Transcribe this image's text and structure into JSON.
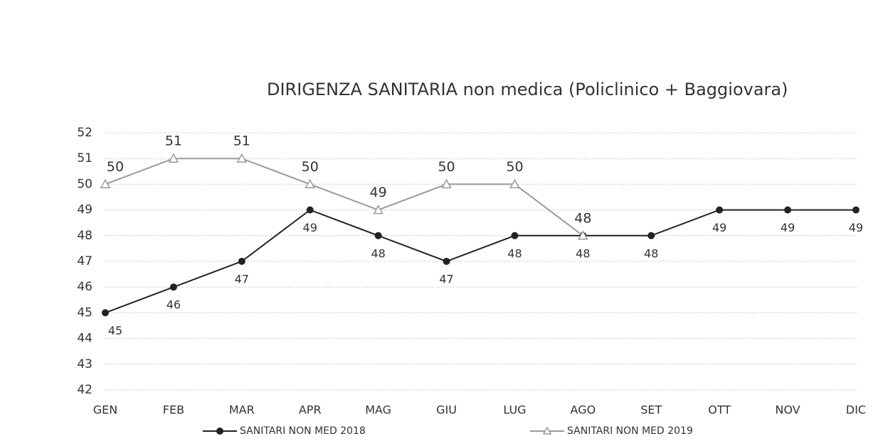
{
  "chart_data": {
    "type": "line",
    "title": "DIRIGENZA SANITARIA non medica (Policlinico + Baggiovara)",
    "categories": [
      "GEN",
      "FEB",
      "MAR",
      "APR",
      "MAG",
      "GIU",
      "LUG",
      "AGO",
      "SET",
      "OTT",
      "NOV",
      "DIC"
    ],
    "series": [
      {
        "name": "SANITARI NON MED 2018",
        "color": "#222222",
        "marker": "circle",
        "label_position": "below",
        "values": [
          45,
          46,
          47,
          49,
          48,
          47,
          48,
          48,
          48,
          49,
          49,
          49
        ]
      },
      {
        "name": "SANITARI NON MED 2019",
        "color": "#9a9a9a",
        "marker": "triangle",
        "label_position": "above",
        "values": [
          50,
          51,
          51,
          50,
          49,
          50,
          50,
          48,
          null,
          null,
          null,
          null
        ]
      }
    ],
    "ylim": [
      42,
      52
    ],
    "yticks": [
      42,
      43,
      44,
      45,
      46,
      47,
      48,
      49,
      50,
      51,
      52
    ],
    "grid": true,
    "legend": "bottom"
  }
}
